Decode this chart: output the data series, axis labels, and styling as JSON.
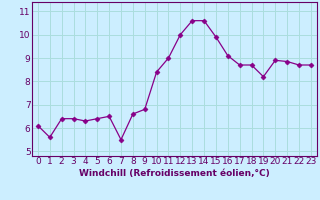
{
  "x": [
    0,
    1,
    2,
    3,
    4,
    5,
    6,
    7,
    8,
    9,
    10,
    11,
    12,
    13,
    14,
    15,
    16,
    17,
    18,
    19,
    20,
    21,
    22,
    23
  ],
  "y": [
    6.1,
    5.6,
    6.4,
    6.4,
    6.3,
    6.4,
    6.5,
    5.5,
    6.6,
    6.8,
    8.4,
    9.0,
    10.0,
    10.6,
    10.6,
    9.9,
    9.1,
    8.7,
    8.7,
    8.2,
    8.9,
    8.85,
    8.7,
    8.7
  ],
  "line_color": "#880088",
  "marker": "D",
  "marker_size": 2.5,
  "bg_color": "#cceeff",
  "grid_color": "#aadddd",
  "xlabel": "Windchill (Refroidissement éolien,°C)",
  "xlim": [
    -0.5,
    23.5
  ],
  "ylim": [
    4.8,
    11.4
  ],
  "yticks": [
    5,
    6,
    7,
    8,
    9,
    10,
    11
  ],
  "xticks": [
    0,
    1,
    2,
    3,
    4,
    5,
    6,
    7,
    8,
    9,
    10,
    11,
    12,
    13,
    14,
    15,
    16,
    17,
    18,
    19,
    20,
    21,
    22,
    23
  ],
  "xlabel_fontsize": 6.5,
  "tick_fontsize": 6.5,
  "label_color": "#660066",
  "spine_color": "#660066"
}
